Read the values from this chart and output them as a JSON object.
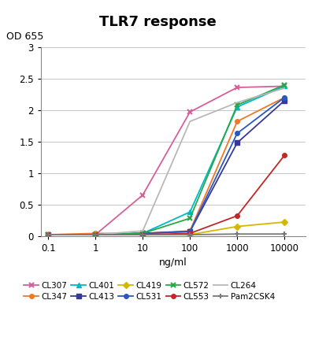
{
  "title": "TLR7 response",
  "ylabel": "OD 655",
  "xlabel": "ng/ml",
  "xvalues": [
    0.1,
    1,
    10,
    100,
    1000,
    10000
  ],
  "series": {
    "CL307": {
      "color": "#d4609a",
      "marker": "x",
      "markersize": 5,
      "linewidth": 1.3,
      "values": [
        0.02,
        0.02,
        0.65,
        1.97,
        2.36,
        2.38
      ]
    },
    "CL347": {
      "color": "#f07828",
      "marker": "o",
      "markersize": 4,
      "linewidth": 1.3,
      "values": [
        0.02,
        0.04,
        0.04,
        0.08,
        1.82,
        2.2
      ]
    },
    "CL401": {
      "color": "#00b8c8",
      "marker": "^",
      "markersize": 4,
      "linewidth": 1.3,
      "values": [
        0.02,
        0.02,
        0.04,
        0.38,
        2.05,
        2.38
      ]
    },
    "CL413": {
      "color": "#38389a",
      "marker": "s",
      "markersize": 4,
      "linewidth": 1.3,
      "values": [
        0.02,
        0.02,
        0.04,
        0.07,
        1.48,
        2.15
      ]
    },
    "CL419": {
      "color": "#d4b800",
      "marker": "D",
      "markersize": 4,
      "linewidth": 1.3,
      "values": [
        0.02,
        0.02,
        0.02,
        0.02,
        0.15,
        0.22
      ]
    },
    "CL531": {
      "color": "#2858c0",
      "marker": "o",
      "markersize": 4,
      "linewidth": 1.3,
      "values": [
        0.02,
        0.02,
        0.04,
        0.07,
        1.63,
        2.2
      ]
    },
    "CL572": {
      "color": "#28a848",
      "marker": "x",
      "markersize": 5,
      "linewidth": 1.3,
      "values": [
        0.02,
        0.02,
        0.04,
        0.28,
        2.08,
        2.4
      ]
    },
    "CL553": {
      "color": "#c02828",
      "marker": "o",
      "markersize": 4,
      "linewidth": 1.3,
      "values": [
        0.02,
        0.02,
        0.02,
        0.04,
        0.32,
        1.28
      ]
    },
    "CL264": {
      "color": "#b8b8b8",
      "marker": null,
      "markersize": 0,
      "linewidth": 1.3,
      "values": [
        0.02,
        0.02,
        0.08,
        1.82,
        2.12,
        2.35
      ]
    },
    "Pam2CSK4": {
      "color": "#787878",
      "marker": "+",
      "markersize": 5,
      "linewidth": 1.3,
      "values": [
        0.02,
        0.02,
        0.02,
        0.02,
        0.03,
        0.03
      ]
    }
  },
  "ylim": [
    0,
    3
  ],
  "yticks": [
    0,
    0.5,
    1.0,
    1.5,
    2.0,
    2.5,
    3.0
  ],
  "legend_order": [
    "CL307",
    "CL347",
    "CL401",
    "CL413",
    "CL419",
    "CL531",
    "CL572",
    "CL553",
    "CL264",
    "Pam2CSK4"
  ]
}
